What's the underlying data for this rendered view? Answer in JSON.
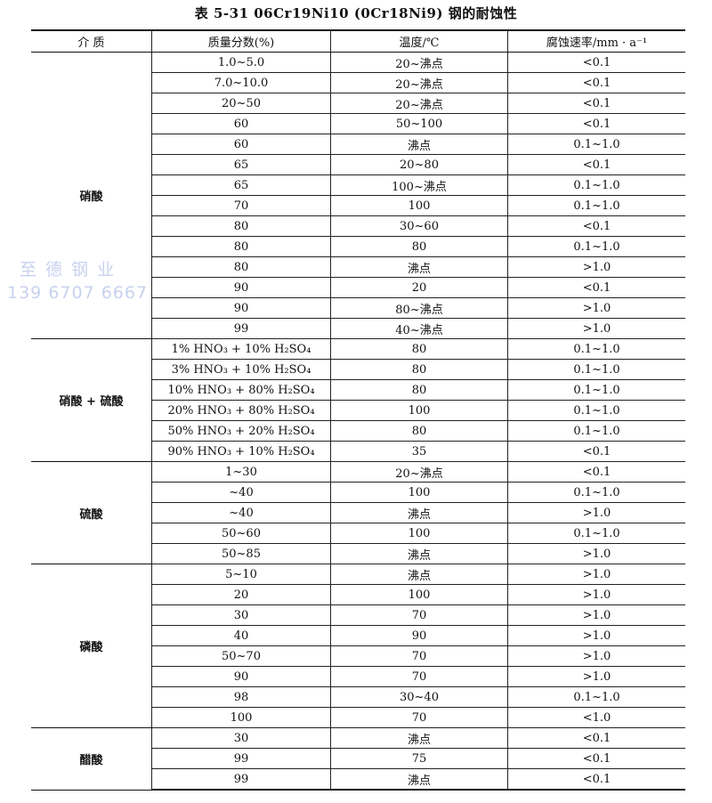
{
  "title": "表 5-31   06Cr19Ni10 (0Cr18Ni9) 钢的耐蚀性",
  "headers": [
    "介    质",
    "质量分数(%)",
    "温度/℃",
    "腐蚀速率/mm · a⁻¹"
  ],
  "groups": [
    {
      "medium": "硝酸",
      "rows": [
        [
          "1.0~5.0",
          "20~沸点",
          "<0.1"
        ],
        [
          "7.0~10.0",
          "20~沸点",
          "<0.1"
        ],
        [
          "20~50",
          "20~沸点",
          "<0.1"
        ],
        [
          "60",
          "50~100",
          "<0.1"
        ],
        [
          "60",
          "沸点",
          "0.1~1.0"
        ],
        [
          "65",
          "20~80",
          "<0.1"
        ],
        [
          "65",
          "100~沸点",
          "0.1~1.0"
        ],
        [
          "70",
          "100",
          "0.1~1.0"
        ],
        [
          "80",
          "30~60",
          "<0.1"
        ],
        [
          "80",
          "80",
          "0.1~1.0"
        ],
        [
          "80",
          "沸点",
          ">1.0"
        ],
        [
          "90",
          "20",
          "<0.1"
        ],
        [
          "90",
          "80~沸点",
          ">1.0"
        ],
        [
          "99",
          "40~沸点",
          ">1.0"
        ]
      ]
    },
    {
      "medium": "硝酸 + 硫酸",
      "rows": [
        [
          "1% HNO₃ + 10% H₂SO₄",
          "80",
          "0.1~1.0"
        ],
        [
          "3% HNO₃ + 10% H₂SO₄",
          "80",
          "0.1~1.0"
        ],
        [
          "10% HNO₃ + 80% H₂SO₄",
          "80",
          "0.1~1.0"
        ],
        [
          "20% HNO₃ + 80% H₂SO₄",
          "100",
          "0.1~1.0"
        ],
        [
          "50% HNO₃ + 20% H₂SO₄",
          "80",
          "0.1~1.0"
        ],
        [
          "90% HNO₃ + 10% H₂SO₄",
          "35",
          "<0.1"
        ]
      ]
    },
    {
      "medium": "硫酸",
      "rows": [
        [
          "1~30",
          "20~沸点",
          "<0.1"
        ],
        [
          "~40",
          "100",
          "0.1~1.0"
        ],
        [
          "~40",
          "沸点",
          ">1.0"
        ],
        [
          "50~60",
          "100",
          "0.1~1.0"
        ],
        [
          "50~85",
          "沸点",
          ">1.0"
        ]
      ]
    },
    {
      "medium": "磷酸",
      "rows": [
        [
          "5~10",
          "沸点",
          ">1.0"
        ],
        [
          "20",
          "100",
          ">1.0"
        ],
        [
          "30",
          "70",
          ">1.0"
        ],
        [
          "40",
          "90",
          ">1.0"
        ],
        [
          "50~70",
          "70",
          ">1.0"
        ],
        [
          "90",
          "70",
          ">1.0"
        ],
        [
          "98",
          "30~40",
          "0.1~1.0"
        ],
        [
          "100",
          "70",
          "<1.0"
        ]
      ]
    },
    {
      "medium": "醋酸",
      "rows": [
        [
          "30",
          "沸点",
          "<0.1"
        ],
        [
          "99",
          "75",
          "<0.1"
        ],
        [
          "99",
          "沸点",
          "<0.1"
        ]
      ]
    }
  ],
  "watermark": {
    "line1": "至 德 钢 业",
    "line2": "139 6707 6667",
    "color": "#c8d2ee"
  }
}
